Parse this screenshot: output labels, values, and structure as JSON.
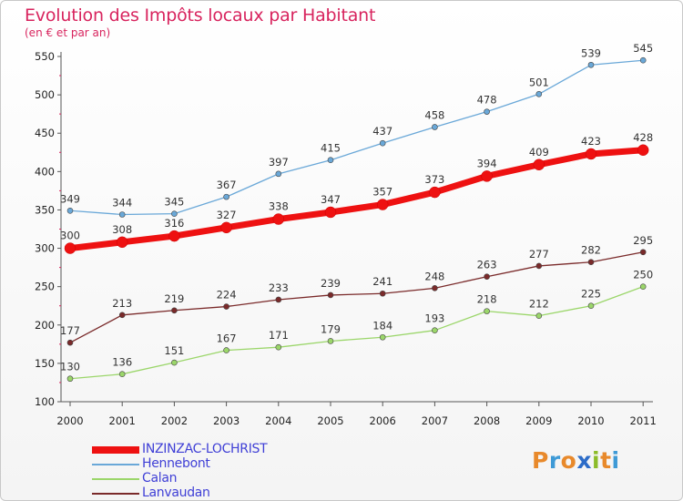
{
  "header": {
    "title": "Evolution des Impôts locaux par Habitant",
    "subtitle": "(en € et par an)"
  },
  "logo": {
    "text": "Proxiti",
    "letters": [
      "P",
      "r",
      "o",
      "x",
      "i",
      "t",
      "i"
    ],
    "colors": [
      "#e8892b",
      "#3e9ad6",
      "#e8892b",
      "#2c6cc8",
      "#8cbc2a",
      "#e8892b",
      "#3e9ad6"
    ]
  },
  "chart_data": {
    "type": "line",
    "title": "Evolution des Impôts locaux par Habitant",
    "subtitle": "(en € et par an)",
    "xlabel": "",
    "ylabel": "",
    "ylim": [
      100,
      550
    ],
    "yticks": [
      100,
      150,
      200,
      250,
      300,
      350,
      400,
      450,
      500,
      550
    ],
    "grid": false,
    "legend_position": "bottom-left",
    "categories": [
      "2000",
      "2001",
      "2002",
      "2003",
      "2004",
      "2005",
      "2006",
      "2007",
      "2008",
      "2009",
      "2010",
      "2011"
    ],
    "series": [
      {
        "name": "INZINZAC-LOCHRIST",
        "values": [
          300,
          308,
          316,
          327,
          338,
          347,
          357,
          373,
          394,
          409,
          423,
          428
        ],
        "color": "#ee1111",
        "emphasis": true
      },
      {
        "name": "Hennebont",
        "values": [
          349,
          344,
          345,
          367,
          397,
          415,
          437,
          458,
          478,
          501,
          539,
          545
        ],
        "color": "#6aa8d8",
        "emphasis": false
      },
      {
        "name": "Calan",
        "values": [
          130,
          136,
          151,
          167,
          171,
          179,
          184,
          193,
          218,
          212,
          225,
          250
        ],
        "color": "#9bd66a",
        "emphasis": false
      },
      {
        "name": "Lanvaudan",
        "values": [
          177,
          213,
          219,
          224,
          233,
          239,
          241,
          248,
          263,
          277,
          282,
          295
        ],
        "color": "#7a2a2a",
        "emphasis": false
      }
    ]
  }
}
